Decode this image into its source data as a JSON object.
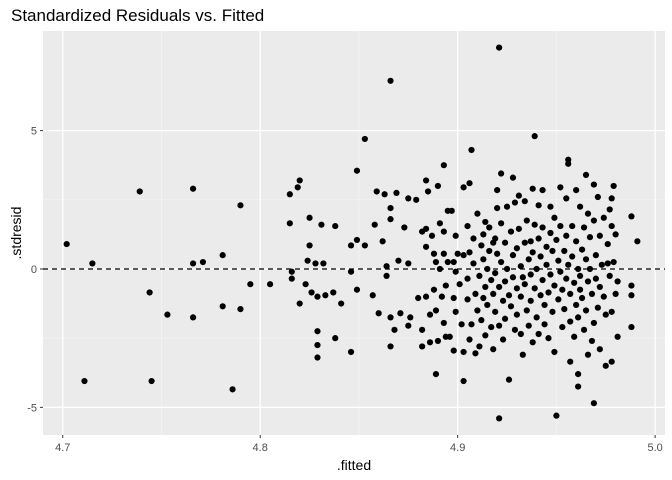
{
  "chart_data": {
    "type": "scatter",
    "title": "Standardized Residuals vs. Fitted",
    "xlabel": ".fitted",
    "ylabel": ".stdresid",
    "xlim": [
      4.69,
      5.005
    ],
    "ylim": [
      -6.0,
      8.6
    ],
    "x_ticks": [
      4.7,
      4.8,
      4.9,
      5.0
    ],
    "x_tick_labels": [
      "4.7",
      "4.8",
      "4.9",
      "5.0"
    ],
    "y_ticks": [
      -5,
      0,
      5
    ],
    "y_tick_labels": [
      "-5",
      "0",
      "5"
    ],
    "grid": true,
    "reference_line": {
      "y": 0,
      "style": "dashed"
    },
    "colors": {
      "panel": "#ebebeb",
      "grid_major": "#ffffff",
      "grid_minor": "#f4f4f4",
      "point": "#000000"
    },
    "series": [
      {
        "points": [
          [
            4.702,
            0.9
          ],
          [
            4.711,
            -4.05
          ],
          [
            4.715,
            0.2
          ],
          [
            4.739,
            2.8
          ],
          [
            4.744,
            -0.85
          ],
          [
            4.745,
            -4.05
          ],
          [
            4.753,
            -1.65
          ],
          [
            4.766,
            2.9
          ],
          [
            4.766,
            0.2
          ],
          [
            4.766,
            -1.75
          ],
          [
            4.771,
            0.25
          ],
          [
            4.781,
            0.5
          ],
          [
            4.781,
            -1.35
          ],
          [
            4.786,
            -4.35
          ],
          [
            4.79,
            2.3
          ],
          [
            4.79,
            -1.45
          ],
          [
            4.795,
            -0.55
          ],
          [
            4.805,
            -0.55
          ],
          [
            4.815,
            2.7
          ],
          [
            4.815,
            1.65
          ],
          [
            4.816,
            -0.1
          ],
          [
            4.816,
            -0.35
          ],
          [
            4.819,
            2.95
          ],
          [
            4.82,
            3.2
          ],
          [
            4.82,
            -1.25
          ],
          [
            4.823,
            -0.55
          ],
          [
            4.824,
            0.3
          ],
          [
            4.825,
            1.85
          ],
          [
            4.825,
            0.85
          ],
          [
            4.826,
            -0.85
          ],
          [
            4.828,
            0.2
          ],
          [
            4.829,
            -1.0
          ],
          [
            4.829,
            -2.25
          ],
          [
            4.829,
            -2.75
          ],
          [
            4.829,
            -3.2
          ],
          [
            4.831,
            1.6
          ],
          [
            4.832,
            0.2
          ],
          [
            4.833,
            -0.95
          ],
          [
            4.837,
            -0.85
          ],
          [
            4.838,
            1.55
          ],
          [
            4.838,
            -2.5
          ],
          [
            4.841,
            -1.25
          ],
          [
            4.846,
            -0.1
          ],
          [
            4.846,
            0.85
          ],
          [
            4.846,
            -3.0
          ],
          [
            4.849,
            3.55
          ],
          [
            4.849,
            1.05
          ],
          [
            4.849,
            -0.75
          ],
          [
            4.853,
            4.7
          ],
          [
            4.853,
            0.85
          ],
          [
            4.857,
            -0.95
          ],
          [
            4.858,
            1.6
          ],
          [
            4.859,
            2.8
          ],
          [
            4.86,
            -1.6
          ],
          [
            4.862,
            1.0
          ],
          [
            4.863,
            2.7
          ],
          [
            4.864,
            0.1
          ],
          [
            4.864,
            -0.25
          ],
          [
            4.866,
            6.8
          ],
          [
            4.866,
            2.2
          ],
          [
            4.866,
            1.8
          ],
          [
            4.866,
            -1.75
          ],
          [
            4.866,
            -2.8
          ],
          [
            4.868,
            -2.2
          ],
          [
            4.869,
            2.75
          ],
          [
            4.87,
            0.3
          ],
          [
            4.871,
            -1.6
          ],
          [
            4.873,
            1.5
          ],
          [
            4.875,
            2.55
          ],
          [
            4.875,
            0.2
          ],
          [
            4.875,
            -2.05
          ],
          [
            4.876,
            -1.75
          ],
          [
            4.879,
            2.5
          ],
          [
            4.88,
            -1.05
          ],
          [
            4.882,
            1.35
          ],
          [
            4.882,
            -2.2
          ],
          [
            4.882,
            -2.8
          ],
          [
            4.884,
            3.2
          ],
          [
            4.884,
            1.45
          ],
          [
            4.884,
            0.8
          ],
          [
            4.884,
            -1.0
          ],
          [
            4.885,
            2.8
          ],
          [
            4.886,
            -1.65
          ],
          [
            4.886,
            -2.65
          ],
          [
            4.887,
            1.2
          ],
          [
            4.888,
            0.55
          ],
          [
            4.888,
            -0.75
          ],
          [
            4.889,
            0.25
          ],
          [
            4.889,
            -1.5
          ],
          [
            4.889,
            -3.8
          ],
          [
            4.89,
            3.0
          ],
          [
            4.89,
            -2.6
          ],
          [
            4.891,
            1.65
          ],
          [
            4.891,
            0.0
          ],
          [
            4.892,
            -1.0
          ],
          [
            4.893,
            3.75
          ],
          [
            4.893,
            1.35
          ],
          [
            4.893,
            0.55
          ],
          [
            4.893,
            -1.95
          ],
          [
            4.894,
            -0.6
          ],
          [
            4.894,
            -2.45
          ],
          [
            4.895,
            2.1
          ],
          [
            4.895,
            0.25
          ],
          [
            4.896,
            -2.45
          ],
          [
            4.897,
            2.1
          ],
          [
            4.898,
            0.25
          ],
          [
            4.898,
            -1.05
          ],
          [
            4.898,
            -2.95
          ],
          [
            4.899,
            1.2
          ],
          [
            4.899,
            -0.1
          ],
          [
            4.899,
            -1.55
          ],
          [
            4.9,
            0.55
          ],
          [
            4.901,
            -0.55
          ],
          [
            4.902,
            -2.0
          ],
          [
            4.903,
            2.95
          ],
          [
            4.903,
            0.5
          ],
          [
            4.903,
            -3.0
          ],
          [
            4.903,
            -4.05
          ],
          [
            4.905,
            1.55
          ],
          [
            4.905,
            -0.35
          ],
          [
            4.905,
            -1.1
          ],
          [
            4.906,
            3.1
          ],
          [
            4.906,
            0.6
          ],
          [
            4.906,
            -2.55
          ],
          [
            4.907,
            4.3
          ],
          [
            4.907,
            -2.0
          ],
          [
            4.908,
            1.1
          ],
          [
            4.908,
            0.2
          ],
          [
            4.909,
            -0.9
          ],
          [
            4.909,
            -3.05
          ],
          [
            4.91,
            2.0
          ],
          [
            4.91,
            -1.5
          ],
          [
            4.911,
            -0.25
          ],
          [
            4.911,
            -2.8
          ],
          [
            4.912,
            0.85
          ],
          [
            4.912,
            -1.85
          ],
          [
            4.913,
            1.25
          ],
          [
            4.913,
            0.35
          ],
          [
            4.913,
            -1.05
          ],
          [
            4.914,
            1.7
          ],
          [
            4.914,
            -0.65
          ],
          [
            4.914,
            -2.4
          ],
          [
            4.915,
            0.0
          ],
          [
            4.915,
            -1.3
          ],
          [
            4.916,
            1.5
          ],
          [
            4.916,
            0.65
          ],
          [
            4.917,
            -0.4
          ],
          [
            4.917,
            -2.1
          ],
          [
            4.918,
            0.95
          ],
          [
            4.918,
            -0.9
          ],
          [
            4.918,
            -2.9
          ],
          [
            4.919,
            1.1
          ],
          [
            4.919,
            -0.15
          ],
          [
            4.919,
            -1.55
          ],
          [
            4.92,
            2.85
          ],
          [
            4.92,
            2.2
          ],
          [
            4.92,
            0.55
          ],
          [
            4.921,
            -0.65
          ],
          [
            4.921,
            -2.05
          ],
          [
            4.921,
            8.0
          ],
          [
            4.921,
            -5.4
          ],
          [
            4.922,
            3.45
          ],
          [
            4.922,
            1.65
          ],
          [
            4.922,
            0.25
          ],
          [
            4.923,
            -1.15
          ],
          [
            4.923,
            -2.55
          ],
          [
            4.924,
            0.95
          ],
          [
            4.924,
            -0.45
          ],
          [
            4.924,
            -1.8
          ],
          [
            4.925,
            2.25
          ],
          [
            4.925,
            0.0
          ],
          [
            4.926,
            -0.95
          ],
          [
            4.926,
            -4.0
          ],
          [
            4.927,
            1.35
          ],
          [
            4.927,
            -1.35
          ],
          [
            4.928,
            3.3
          ],
          [
            4.928,
            0.5
          ],
          [
            4.928,
            -0.3
          ],
          [
            4.929,
            -2.2
          ],
          [
            4.929,
            2.4
          ],
          [
            4.93,
            0.75
          ],
          [
            4.93,
            -0.7
          ],
          [
            4.93,
            -1.65
          ],
          [
            4.931,
            2.65
          ],
          [
            4.931,
            1.45
          ],
          [
            4.932,
            0.1
          ],
          [
            4.932,
            -1.0
          ],
          [
            4.932,
            -2.35
          ],
          [
            4.933,
            -0.3
          ],
          [
            4.933,
            -3.1
          ],
          [
            4.934,
            2.45
          ],
          [
            4.934,
            0.95
          ],
          [
            4.934,
            -0.55
          ],
          [
            4.935,
            1.75
          ],
          [
            4.935,
            -1.5
          ],
          [
            4.936,
            0.35
          ],
          [
            4.936,
            -2.05
          ],
          [
            4.937,
            1.0
          ],
          [
            4.937,
            -0.2
          ],
          [
            4.937,
            -1.15
          ],
          [
            4.938,
            2.9
          ],
          [
            4.938,
            0.6
          ],
          [
            4.938,
            -2.65
          ],
          [
            4.939,
            4.8
          ],
          [
            4.939,
            1.6
          ],
          [
            4.939,
            -0.7
          ],
          [
            4.94,
            0.0
          ],
          [
            4.94,
            -1.75
          ],
          [
            4.941,
            2.3
          ],
          [
            4.941,
            1.1
          ],
          [
            4.941,
            -2.35
          ],
          [
            4.942,
            0.45
          ],
          [
            4.942,
            -0.95
          ],
          [
            4.943,
            2.85
          ],
          [
            4.943,
            1.5
          ],
          [
            4.943,
            -0.4
          ],
          [
            4.944,
            -1.3
          ],
          [
            4.944,
            -2.0
          ],
          [
            4.945,
            0.8
          ],
          [
            4.945,
            0.15
          ],
          [
            4.946,
            -0.85
          ],
          [
            4.946,
            -2.5
          ],
          [
            4.947,
            2.25
          ],
          [
            4.947,
            1.3
          ],
          [
            4.947,
            -0.2
          ],
          [
            4.948,
            0.65
          ],
          [
            4.948,
            -1.55
          ],
          [
            4.949,
            1.85
          ],
          [
            4.949,
            -0.6
          ],
          [
            4.949,
            -3.0
          ],
          [
            4.95,
            1.05
          ],
          [
            4.95,
            -5.3
          ],
          [
            4.951,
            0.3
          ],
          [
            4.951,
            -1.1
          ],
          [
            4.952,
            2.95
          ],
          [
            4.952,
            1.55
          ],
          [
            4.952,
            -0.1
          ],
          [
            4.953,
            -0.75
          ],
          [
            4.953,
            -2.1
          ],
          [
            4.954,
            0.65
          ],
          [
            4.954,
            -1.45
          ],
          [
            4.955,
            2.55
          ],
          [
            4.955,
            1.2
          ],
          [
            4.955,
            -0.35
          ],
          [
            4.956,
            3.95
          ],
          [
            4.956,
            3.8
          ],
          [
            4.956,
            0.15
          ],
          [
            4.957,
            -0.9
          ],
          [
            4.957,
            -1.9
          ],
          [
            4.957,
            -3.35
          ],
          [
            4.958,
            1.55
          ],
          [
            4.958,
            0.45
          ],
          [
            4.959,
            -0.5
          ],
          [
            4.959,
            -2.45
          ],
          [
            4.96,
            2.85
          ],
          [
            4.96,
            1.0
          ],
          [
            4.96,
            -1.3
          ],
          [
            4.961,
            0.0
          ],
          [
            4.961,
            -1.75
          ],
          [
            4.961,
            -3.8
          ],
          [
            4.961,
            -4.25
          ],
          [
            4.962,
            2.25
          ],
          [
            4.962,
            -0.25
          ],
          [
            4.962,
            -0.75
          ],
          [
            4.963,
            0.7
          ],
          [
            4.963,
            -1.05
          ],
          [
            4.964,
            1.5
          ],
          [
            4.964,
            -2.2
          ],
          [
            4.965,
            3.4
          ],
          [
            4.965,
            0.35
          ],
          [
            4.965,
            -1.5
          ],
          [
            4.966,
            2.0
          ],
          [
            4.966,
            -0.45
          ],
          [
            4.966,
            -3.1
          ],
          [
            4.967,
            1.15
          ],
          [
            4.967,
            0.0
          ],
          [
            4.968,
            -0.9
          ],
          [
            4.968,
            -2.6
          ],
          [
            4.969,
            3.05
          ],
          [
            4.969,
            1.75
          ],
          [
            4.969,
            -1.95
          ],
          [
            4.969,
            -4.85
          ],
          [
            4.97,
            0.5
          ],
          [
            4.97,
            -0.35
          ],
          [
            4.971,
            2.6
          ],
          [
            4.971,
            -1.4
          ],
          [
            4.972,
            1.2
          ],
          [
            4.972,
            -0.65
          ],
          [
            4.972,
            -2.9
          ],
          [
            4.973,
            0.15
          ],
          [
            4.974,
            1.85
          ],
          [
            4.974,
            -1.0
          ],
          [
            4.975,
            -1.65
          ],
          [
            4.975,
            -3.5
          ],
          [
            4.976,
            0.2
          ],
          [
            4.976,
            0.9
          ],
          [
            4.977,
            2.15
          ],
          [
            4.977,
            -0.25
          ],
          [
            4.978,
            2.55
          ],
          [
            4.978,
            1.55
          ],
          [
            4.978,
            -1.55
          ],
          [
            4.978,
            -3.35
          ],
          [
            4.979,
            3.0
          ],
          [
            4.979,
            0.25
          ],
          [
            4.98,
            1.25
          ],
          [
            4.98,
            -0.9
          ],
          [
            4.981,
            -0.45
          ],
          [
            4.981,
            -2.45
          ],
          [
            4.988,
            1.9
          ],
          [
            4.988,
            -0.6
          ],
          [
            4.988,
            -0.95
          ],
          [
            4.988,
            -2.1
          ],
          [
            4.991,
            1.0
          ]
        ]
      }
    ]
  }
}
